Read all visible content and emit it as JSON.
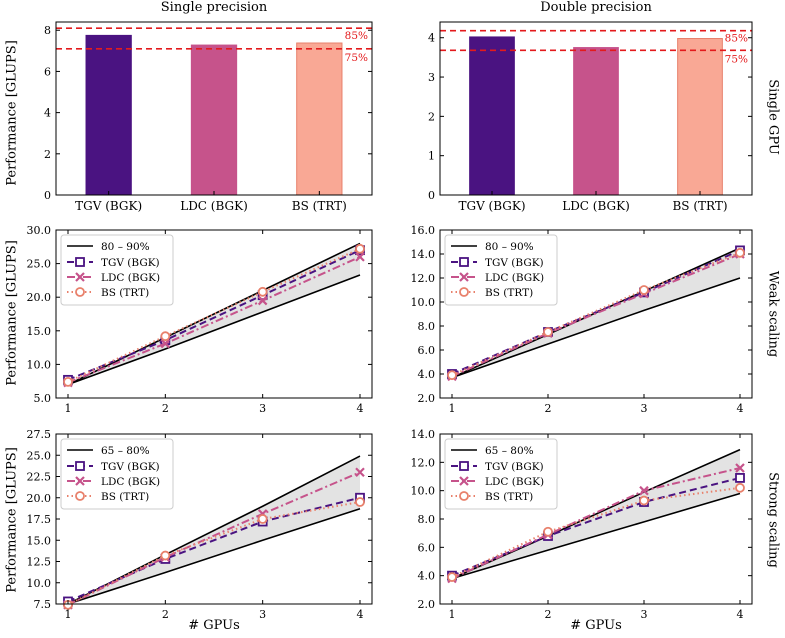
{
  "column_titles": [
    "Single precision",
    "Double precision"
  ],
  "row_labels": [
    "Single GPU",
    "Weak scaling",
    "Strong scaling"
  ],
  "ylabels": [
    "Performance [GLUPS]",
    "Performance [GLUPS]",
    "Performance [GLUPS]"
  ],
  "xlabels": [
    "# GPUs",
    "# GPUs"
  ],
  "colors": {
    "tgv": "#4a1381",
    "ldc": "#c6538b",
    "bs": "#f9a895",
    "bs_edge": "#e8806b",
    "threshold": "#e31a1c",
    "band": "#d9d9d9",
    "bound": "#000000"
  },
  "chart_data": [
    {
      "id": "single-gpu-sp",
      "type": "bar",
      "categories": [
        "TGV (BGK)",
        "LDC (BGK)",
        "BS (TRT)"
      ],
      "values": [
        7.75,
        7.28,
        7.38
      ],
      "ylim": [
        0,
        8.4
      ],
      "yticks": [
        "0",
        "2",
        "4",
        "6",
        "8"
      ],
      "reference_lines": [
        {
          "value": 8.1,
          "label": "85%"
        },
        {
          "value": 7.1,
          "label": "75%"
        }
      ]
    },
    {
      "id": "single-gpu-dp",
      "type": "bar",
      "categories": [
        "TGV (BGK)",
        "LDC (BGK)",
        "BS (TRT)"
      ],
      "values": [
        4.02,
        3.75,
        3.98
      ],
      "ylim": [
        0,
        4.4
      ],
      "yticks": [
        "0",
        "1",
        "2",
        "3",
        "4"
      ],
      "reference_lines": [
        {
          "value": 4.18,
          "label": "85%"
        },
        {
          "value": 3.68,
          "label": "75%"
        }
      ]
    },
    {
      "id": "weak-sp",
      "type": "line",
      "x": [
        1,
        2,
        3,
        4
      ],
      "xticks": [
        "1",
        "2",
        "3",
        "4"
      ],
      "ylim": [
        5,
        30
      ],
      "yticks": [
        "5.0",
        "10.0",
        "15.0",
        "20.0",
        "25.0",
        "30.0"
      ],
      "band": {
        "label": "80 – 90%",
        "upper": [
          7.0,
          14.0,
          21.0,
          28.0
        ],
        "lower": [
          7.0,
          12.3,
          17.8,
          23.3
        ]
      },
      "series": [
        {
          "name": "TGV (BGK)",
          "values": [
            7.7,
            13.6,
            20.3,
            27.0
          ]
        },
        {
          "name": "LDC (BGK)",
          "values": [
            7.3,
            13.1,
            19.5,
            26.0
          ]
        },
        {
          "name": "BS (TRT)",
          "values": [
            7.4,
            14.2,
            20.8,
            27.2
          ]
        }
      ]
    },
    {
      "id": "weak-dp",
      "type": "line",
      "x": [
        1,
        2,
        3,
        4
      ],
      "xticks": [
        "1",
        "2",
        "3",
        "4"
      ],
      "ylim": [
        2,
        16
      ],
      "yticks": [
        "2.0",
        "4.0",
        "6.0",
        "8.0",
        "10.0",
        "12.0",
        "14.0",
        "16.0"
      ],
      "band": {
        "label": "80 – 90%",
        "upper": [
          3.7,
          7.3,
          10.9,
          14.5
        ],
        "lower": [
          3.7,
          6.5,
          9.3,
          12.0
        ]
      },
      "series": [
        {
          "name": "TGV (BGK)",
          "values": [
            4.0,
            7.5,
            10.8,
            14.3
          ]
        },
        {
          "name": "LDC (BGK)",
          "values": [
            3.8,
            7.4,
            10.7,
            14.0
          ]
        },
        {
          "name": "BS (TRT)",
          "values": [
            3.9,
            7.5,
            11.0,
            14.1
          ]
        }
      ]
    },
    {
      "id": "strong-sp",
      "type": "line",
      "x": [
        1,
        2,
        3,
        4
      ],
      "xticks": [
        "1",
        "2",
        "3",
        "4"
      ],
      "ylim": [
        7.5,
        27.5
      ],
      "yticks": [
        "7.5",
        "10.0",
        "12.5",
        "15.0",
        "17.5",
        "20.0",
        "22.5",
        "25.0",
        "27.5"
      ],
      "band": {
        "label": "65 – 80%",
        "upper": [
          7.5,
          13.3,
          19.0,
          24.9
        ],
        "lower": [
          7.5,
          11.2,
          15.0,
          18.7
        ]
      },
      "series": [
        {
          "name": "TGV (BGK)",
          "values": [
            7.8,
            12.8,
            17.2,
            20.0
          ]
        },
        {
          "name": "LDC (BGK)",
          "values": [
            7.4,
            13.0,
            18.1,
            23.0
          ]
        },
        {
          "name": "BS (TRT)",
          "values": [
            7.4,
            13.2,
            17.5,
            19.5
          ]
        }
      ]
    },
    {
      "id": "strong-dp",
      "type": "line",
      "x": [
        1,
        2,
        3,
        4
      ],
      "xticks": [
        "1",
        "2",
        "3",
        "4"
      ],
      "ylim": [
        2,
        14
      ],
      "yticks": [
        "2.0",
        "4.0",
        "6.0",
        "8.0",
        "10.0",
        "12.0",
        "14.0"
      ],
      "band": {
        "label": "65 – 80%",
        "upper": [
          3.8,
          6.8,
          9.9,
          12.9
        ],
        "lower": [
          3.8,
          5.8,
          7.8,
          9.8
        ]
      },
      "series": [
        {
          "name": "TGV (BGK)",
          "values": [
            4.0,
            6.8,
            9.2,
            10.9
          ]
        },
        {
          "name": "LDC (BGK)",
          "values": [
            3.8,
            6.9,
            10.0,
            11.6
          ]
        },
        {
          "name": "BS (TRT)",
          "values": [
            3.9,
            7.1,
            9.3,
            10.2
          ]
        }
      ]
    }
  ]
}
